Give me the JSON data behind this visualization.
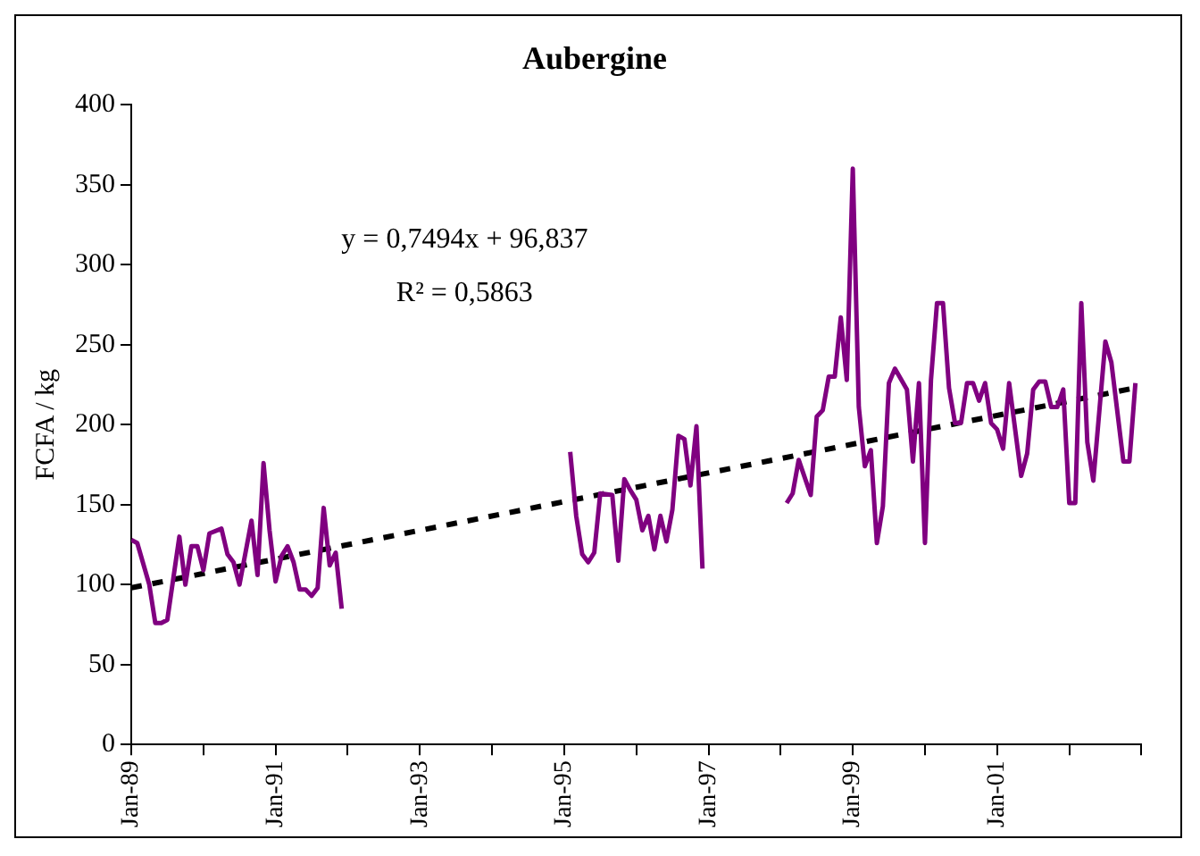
{
  "chart_data": {
    "type": "line",
    "title": "Aubergine",
    "ylabel": "FCFA / kg",
    "annotations": [
      "y = 0,7494x + 96,837",
      "R² = 0,5863"
    ],
    "xlim": [
      "1989-01",
      "2003-01"
    ],
    "xticks": [
      {
        "value": "1989-01",
        "label": "Jan-89"
      },
      {
        "value": "1990-01",
        "label": null
      },
      {
        "value": "1991-01",
        "label": "Jan-91"
      },
      {
        "value": "1992-01",
        "label": null
      },
      {
        "value": "1993-01",
        "label": "Jan-93"
      },
      {
        "value": "1994-01",
        "label": null
      },
      {
        "value": "1995-01",
        "label": "Jan-95"
      },
      {
        "value": "1996-01",
        "label": null
      },
      {
        "value": "1997-01",
        "label": "Jan-97"
      },
      {
        "value": "1998-01",
        "label": null
      },
      {
        "value": "1999-01",
        "label": "Jan-99"
      },
      {
        "value": "2000-01",
        "label": null
      },
      {
        "value": "2001-01",
        "label": "Jan-01"
      },
      {
        "value": "2002-01",
        "label": null
      },
      {
        "value": "2003-01",
        "label": null
      }
    ],
    "ylim": [
      0,
      400
    ],
    "yticks": [
      0,
      50,
      100,
      150,
      200,
      250,
      300,
      350,
      400
    ],
    "grid": false,
    "legend": false,
    "marker": "none",
    "series": [
      {
        "type": "line",
        "color": "#800080",
        "line_style": "solid",
        "x": [
          "1989-01",
          "1989-02",
          "1989-04",
          "1989-05",
          "1989-06",
          "1989-07",
          "1989-09",
          "1989-10",
          "1989-11",
          "1989-12",
          "1990-01",
          "1990-02",
          "1990-04",
          "1990-05",
          "1990-06",
          "1990-07",
          "1990-09",
          "1990-10",
          "1990-11",
          "1990-12",
          "1991-01",
          "1991-02",
          "1991-03",
          "1991-04",
          "1991-05",
          "1991-06",
          "1991-07",
          "1991-08",
          "1991-09",
          "1991-10",
          "1991-11",
          "1991-12",
          "1993-06",
          "1995-02",
          "1995-03",
          "1995-04",
          "1995-05",
          "1995-06",
          "1995-07",
          "1995-09",
          "1995-10",
          "1995-11",
          "1995-12",
          "1996-01",
          "1996-02",
          "1996-03",
          "1996-04",
          "1996-05",
          "1996-06",
          "1996-07",
          "1996-08",
          "1996-09",
          "1996-10",
          "1996-11",
          "1996-12",
          "1997-06",
          "1998-02",
          "1998-03",
          "1998-04",
          "1998-06",
          "1998-07",
          "1998-08",
          "1998-09",
          "1998-10",
          "1998-11",
          "1998-12",
          "1999-01",
          "1999-02",
          "1999-03",
          "1999-04",
          "1999-05",
          "1999-06",
          "1999-07",
          "1999-08",
          "1999-10",
          "1999-11",
          "1999-12",
          "2000-01",
          "2000-02",
          "2000-03",
          "2000-04",
          "2000-05",
          "2000-06",
          "2000-07",
          "2000-08",
          "2000-09",
          "2000-10",
          "2000-11",
          "2000-12",
          "2001-01",
          "2001-02",
          "2001-03",
          "2001-05",
          "2001-06",
          "2001-07",
          "2001-08",
          "2001-09",
          "2001-10",
          "2001-11",
          "2001-12",
          "2002-01",
          "2002-02",
          "2002-03",
          "2002-04",
          "2002-05",
          "2002-07",
          "2002-08",
          "2002-10",
          "2002-11",
          "2002-12"
        ],
        "values": [
          128,
          126,
          100,
          76,
          76,
          78,
          130,
          100,
          124,
          124,
          109,
          132,
          135,
          119,
          114,
          100,
          140,
          106,
          176,
          134,
          102,
          118,
          124,
          114,
          97,
          97,
          93,
          98,
          148,
          112,
          120,
          85,
          null,
          183,
          143,
          119,
          114,
          120,
          157,
          156,
          115,
          166,
          159,
          153,
          134,
          143,
          122,
          143,
          127,
          147,
          193,
          191,
          162,
          199,
          110,
          null,
          151,
          157,
          178,
          156,
          205,
          209,
          230,
          230,
          267,
          228,
          360,
          211,
          174,
          184,
          126,
          149,
          226,
          235,
          222,
          177,
          226,
          126,
          228,
          276,
          276,
          223,
          201,
          201,
          226,
          226,
          215,
          226,
          201,
          197,
          185,
          226,
          168,
          182,
          222,
          227,
          227,
          211,
          211,
          222,
          151,
          151,
          276,
          189,
          165,
          252,
          239,
          177,
          177,
          226
        ]
      },
      {
        "type": "line",
        "color": "#000000",
        "line_style": "dashed",
        "x": [
          "1989-01",
          "2002-12"
        ],
        "values": [
          98,
          223
        ]
      }
    ]
  }
}
